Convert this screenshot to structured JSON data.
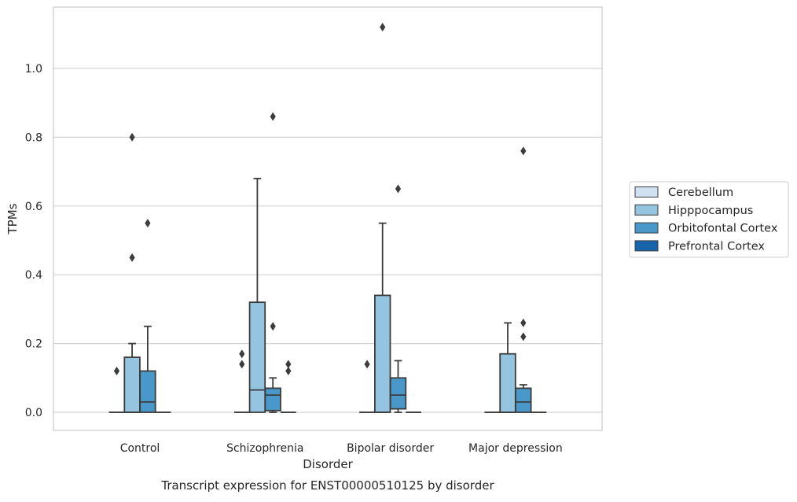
{
  "chart_data": {
    "type": "box",
    "title": "Transcript expression for ENST00000510125 by disorder",
    "xlabel": "Disorder",
    "ylabel": "TPMs",
    "ylim": [
      -0.055,
      1.175
    ],
    "yticks": [
      0.0,
      0.2,
      0.4,
      0.6,
      0.8,
      1.0
    ],
    "ytick_labels": [
      "0.0",
      "0.2",
      "0.4",
      "0.6",
      "0.8",
      "1.0"
    ],
    "grid": "horizontal",
    "legend_position": "right",
    "categories": [
      "Control",
      "Schizophrenia",
      "Bipolar disorder",
      "Major depression"
    ],
    "series": [
      {
        "name": "Cerebellum",
        "color": "#d0e1f2",
        "boxes": [
          {
            "q1": 0,
            "median": 0,
            "q3": 0,
            "whisker_low": 0,
            "whisker_high": 0,
            "outliers": [
              0.12
            ]
          },
          {
            "q1": 0,
            "median": 0,
            "q3": 0,
            "whisker_low": 0,
            "whisker_high": 0,
            "outliers": [
              0.14,
              0.17
            ]
          },
          {
            "q1": 0,
            "median": 0,
            "q3": 0,
            "whisker_low": 0,
            "whisker_high": 0,
            "outliers": [
              0.14
            ]
          },
          {
            "q1": 0,
            "median": 0,
            "q3": 0,
            "whisker_low": 0,
            "whisker_high": 0,
            "outliers": []
          }
        ]
      },
      {
        "name": "Hipppocampus",
        "color": "#94c4df",
        "boxes": [
          {
            "q1": 0,
            "median": 0,
            "q3": 0.16,
            "whisker_low": 0,
            "whisker_high": 0.2,
            "outliers": [
              0.45,
              0.8
            ]
          },
          {
            "q1": 0,
            "median": 0.065,
            "q3": 0.32,
            "whisker_low": 0,
            "whisker_high": 0.68,
            "outliers": []
          },
          {
            "q1": 0,
            "median": 0,
            "q3": 0.34,
            "whisker_low": 0,
            "whisker_high": 0.55,
            "outliers": [
              1.12
            ]
          },
          {
            "q1": 0,
            "median": 0,
            "q3": 0.17,
            "whisker_low": 0,
            "whisker_high": 0.26,
            "outliers": []
          }
        ]
      },
      {
        "name": "Orbitofontal Cortex",
        "color": "#4a98c9",
        "boxes": [
          {
            "q1": 0,
            "median": 0.03,
            "q3": 0.12,
            "whisker_low": 0,
            "whisker_high": 0.25,
            "outliers": [
              0.55
            ]
          },
          {
            "q1": 0.005,
            "median": 0.05,
            "q3": 0.07,
            "whisker_low": 0,
            "whisker_high": 0.1,
            "outliers": [
              0.25,
              0.86
            ]
          },
          {
            "q1": 0.01,
            "median": 0.05,
            "q3": 0.1,
            "whisker_low": 0,
            "whisker_high": 0.15,
            "outliers": [
              0.65
            ]
          },
          {
            "q1": 0,
            "median": 0.03,
            "q3": 0.07,
            "whisker_low": 0,
            "whisker_high": 0.08,
            "outliers": [
              0.22,
              0.26,
              0.76
            ]
          }
        ]
      },
      {
        "name": "Prefrontal Cortex",
        "color": "#1764ab",
        "boxes": [
          {
            "q1": 0,
            "median": 0,
            "q3": 0,
            "whisker_low": 0,
            "whisker_high": 0,
            "outliers": []
          },
          {
            "q1": 0,
            "median": 0,
            "q3": 0,
            "whisker_low": 0,
            "whisker_high": 0,
            "outliers": [
              0.12,
              0.14
            ]
          },
          {
            "q1": 0,
            "median": 0,
            "q3": 0,
            "whisker_low": 0,
            "whisker_high": 0,
            "outliers": []
          },
          {
            "q1": 0,
            "median": 0,
            "q3": 0,
            "whisker_low": 0,
            "whisker_high": 0,
            "outliers": []
          }
        ]
      }
    ]
  }
}
